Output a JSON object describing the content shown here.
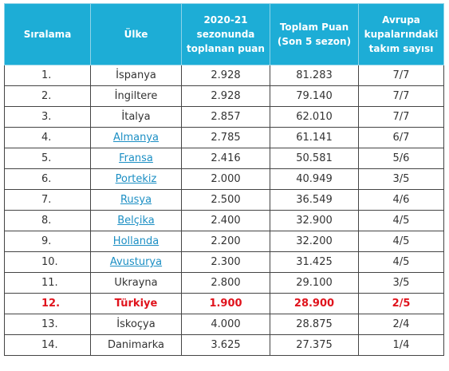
{
  "headers": {
    "rank": "Sıralama",
    "country": "Ülke",
    "season_points": [
      "2020-21",
      "sezonunda",
      "toplanan puan"
    ],
    "total_points": [
      "Toplam Puan",
      "(Son 5 sezon)"
    ],
    "european_teams": [
      "Avrupa",
      "kupalarındaki",
      "takım sayısı"
    ]
  },
  "colors": {
    "header_bg": "#1dadd6",
    "link": "#1c8fc4",
    "highlight": "#e0131c"
  },
  "rows": [
    {
      "rank": "1.",
      "country": "İspanya",
      "season": "2.928",
      "total": "81.283",
      "teams": "7/7",
      "link": false,
      "highlight": false
    },
    {
      "rank": "2.",
      "country": "İngiltere",
      "season": "2.928",
      "total": "79.140",
      "teams": "7/7",
      "link": false,
      "highlight": false
    },
    {
      "rank": "3.",
      "country": "İtalya",
      "season": "2.857",
      "total": "62.010",
      "teams": "7/7",
      "link": false,
      "highlight": false
    },
    {
      "rank": "4.",
      "country": "Almanya",
      "season": "2.785",
      "total": "61.141",
      "teams": "6/7",
      "link": true,
      "highlight": false
    },
    {
      "rank": "5.",
      "country": "Fransa",
      "season": "2.416",
      "total": "50.581",
      "teams": "5/6",
      "link": true,
      "highlight": false
    },
    {
      "rank": "6.",
      "country": "Portekiz",
      "season": "2.000",
      "total": "40.949",
      "teams": "3/5",
      "link": true,
      "highlight": false
    },
    {
      "rank": "7.",
      "country": "Rusya",
      "season": "2.500",
      "total": "36.549",
      "teams": "4/6",
      "link": true,
      "highlight": false
    },
    {
      "rank": "8.",
      "country": "Belçika",
      "season": "2.400",
      "total": "32.900",
      "teams": "4/5",
      "link": true,
      "highlight": false
    },
    {
      "rank": "9.",
      "country": "Hollanda",
      "season": "2.200",
      "total": "32.200",
      "teams": "4/5",
      "link": true,
      "highlight": false
    },
    {
      "rank": "10.",
      "country": "Avusturya",
      "season": "2.300",
      "total": "31.425",
      "teams": "4/5",
      "link": true,
      "highlight": false
    },
    {
      "rank": "11.",
      "country": "Ukrayna",
      "season": "2.800",
      "total": "29.100",
      "teams": "3/5",
      "link": false,
      "highlight": false
    },
    {
      "rank": "12.",
      "country": "Türkiye",
      "season": "1.900",
      "total": "28.900",
      "teams": "2/5",
      "link": false,
      "highlight": true
    },
    {
      "rank": "13.",
      "country": "İskoçya",
      "season": "4.000",
      "total": "28.875",
      "teams": "2/4",
      "link": false,
      "highlight": false
    },
    {
      "rank": "14.",
      "country": "Danimarka",
      "season": "3.625",
      "total": "27.375",
      "teams": "1/4",
      "link": false,
      "highlight": false
    }
  ]
}
